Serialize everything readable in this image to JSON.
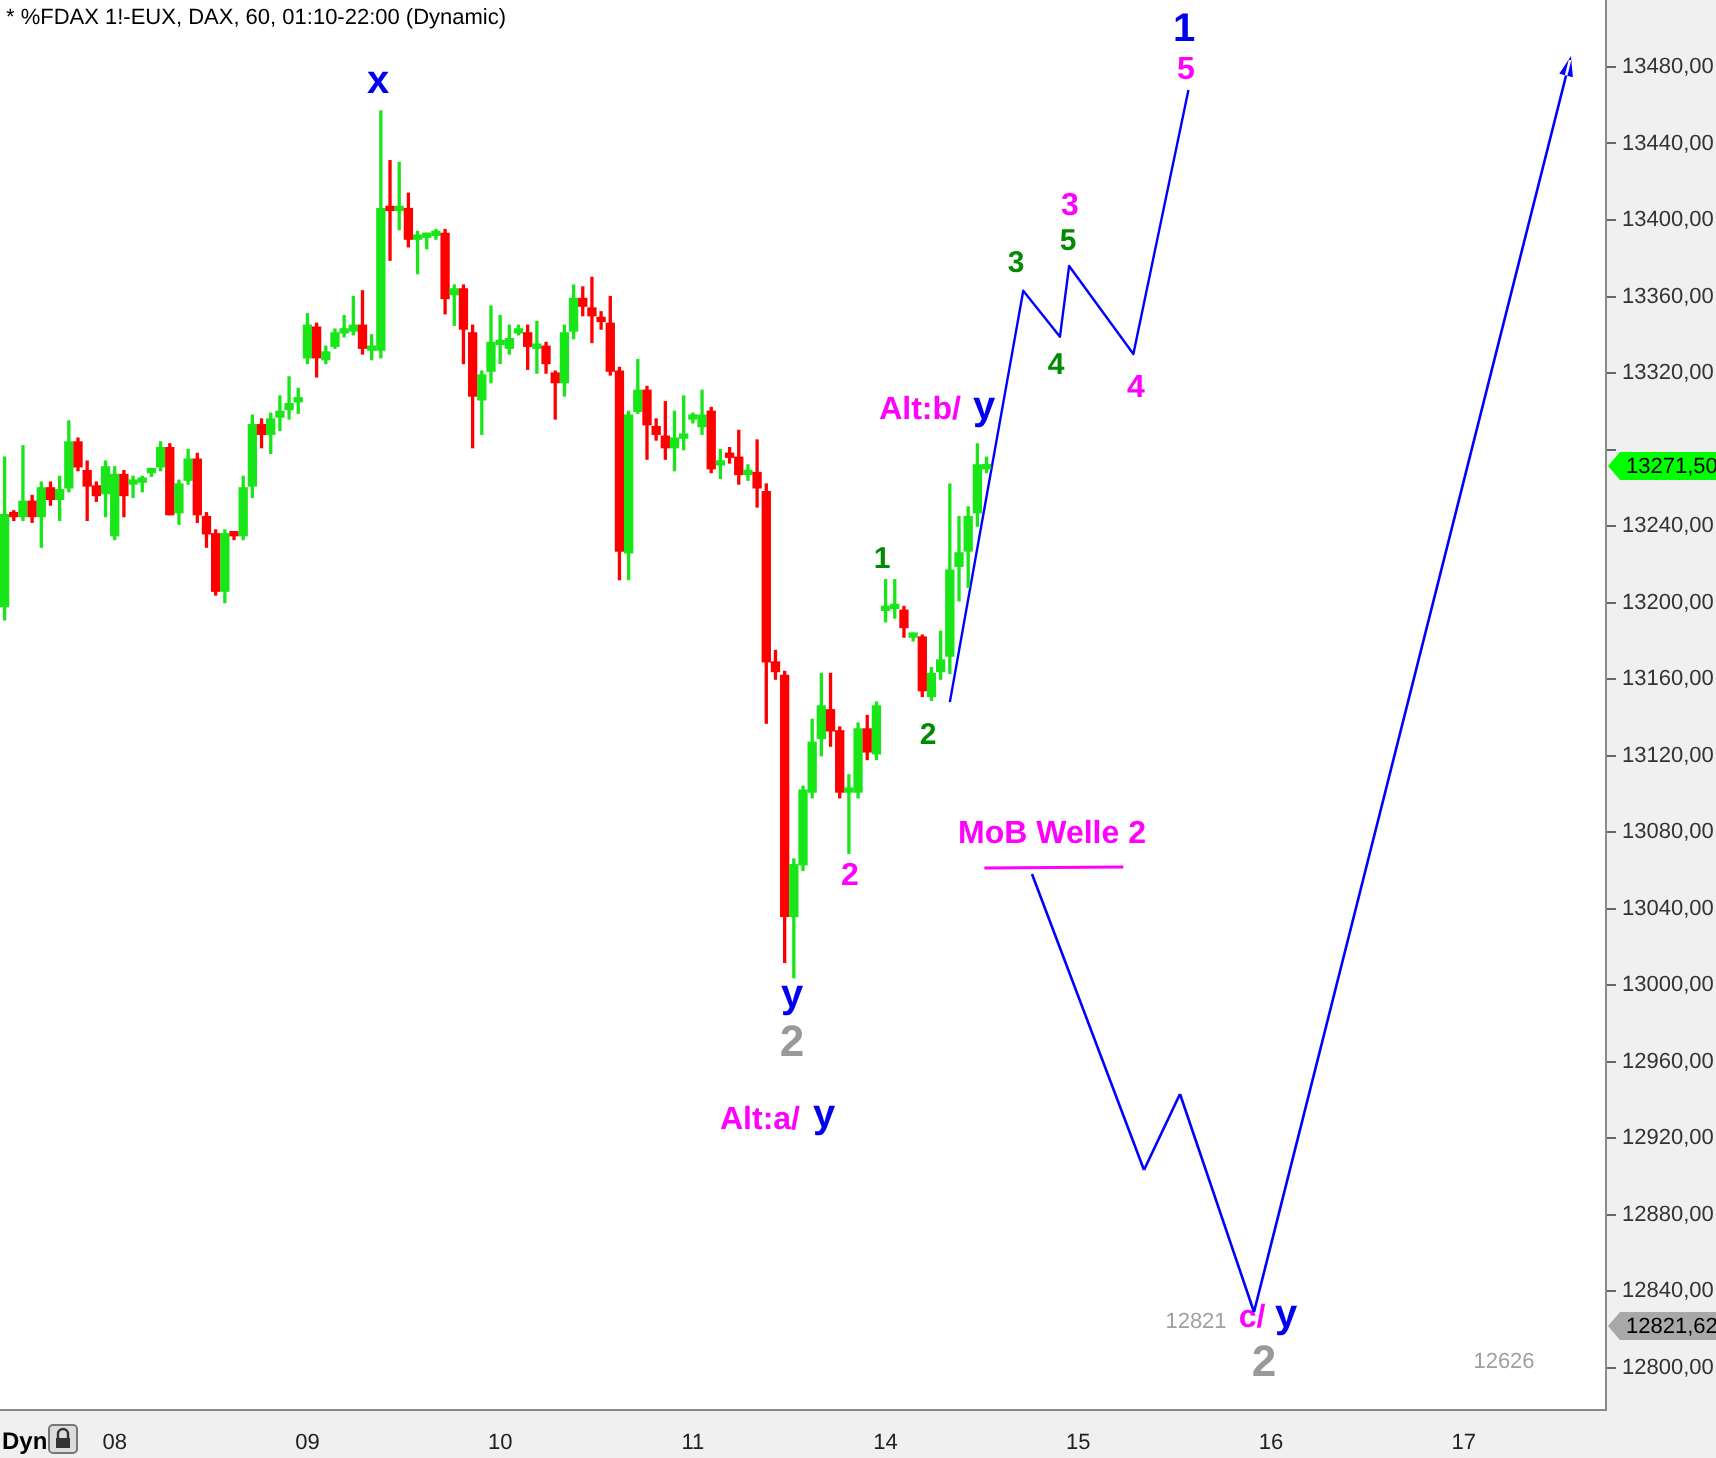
{
  "chart_data": {
    "type": "candlestick",
    "title": "* %FDAX 1!-EUX, DAX, 60, 01:10-22:00 (Dynamic)",
    "categories": [
      null,
      null,
      null,
      null,
      null,
      null,
      null,
      null,
      null,
      null,
      null,
      null,
      "08",
      null,
      null,
      null,
      null,
      null,
      null,
      null,
      null,
      null,
      null,
      null,
      null,
      null,
      null,
      null,
      null,
      null,
      null,
      null,
      null,
      "09",
      null,
      null,
      null,
      null,
      null,
      null,
      null,
      null,
      null,
      null,
      null,
      null,
      null,
      null,
      null,
      null,
      null,
      null,
      null,
      null,
      "10",
      null,
      null,
      null,
      null,
      null,
      null,
      null,
      null,
      null,
      null,
      null,
      null,
      null,
      null,
      null,
      null,
      null,
      null,
      null,
      null,
      "11",
      null,
      null,
      null,
      null,
      null,
      null,
      null,
      null,
      null,
      null,
      null,
      null,
      null,
      null,
      null,
      null,
      null,
      null,
      null,
      null,
      "14",
      null,
      null,
      null,
      null,
      null,
      null,
      null,
      null,
      null,
      null,
      null,
      null,
      null,
      null,
      null,
      null,
      null,
      null,
      null,
      null,
      "15",
      null,
      null,
      null,
      null,
      null,
      null,
      null,
      null,
      null,
      null,
      null,
      null,
      null,
      null,
      null,
      null,
      null,
      null,
      null,
      null,
      "16",
      null,
      null,
      null,
      null,
      null,
      null,
      null,
      null,
      null,
      null,
      null,
      null,
      null,
      null,
      null,
      null,
      null,
      null,
      null,
      null,
      "17",
      null,
      null,
      null,
      null,
      null,
      null,
      null,
      null,
      null,
      null,
      null,
      null,
      null,
      null,
      null
    ],
    "ohlc": [
      [
        13198,
        13276,
        13191,
        13246
      ],
      [
        13246,
        13248,
        13243,
        13245
      ],
      [
        13245,
        13282,
        13243,
        13253
      ],
      [
        13253,
        13256,
        13242,
        13245
      ],
      [
        13245,
        13263,
        13229,
        13260
      ],
      [
        13260,
        13263,
        13251,
        13254
      ],
      [
        13254,
        13266,
        13243,
        13259
      ],
      [
        13260,
        13295,
        13258,
        13284
      ],
      [
        13284,
        13286,
        13269,
        13271
      ],
      [
        13269,
        13274,
        13243,
        13261
      ],
      [
        13261,
        13263,
        13253,
        13256
      ],
      [
        13257,
        13274,
        13245,
        13271
      ],
      [
        13235,
        13271,
        13233,
        13267
      ],
      [
        13267,
        13269,
        13245,
        13256
      ],
      [
        13262,
        13266,
        13255,
        13263
      ],
      [
        13263,
        13266,
        13258,
        13264
      ],
      [
        13268,
        13270,
        13266,
        13268
      ],
      [
        13271,
        13284,
        13269,
        13281
      ],
      [
        13281,
        13283,
        13246,
        13246
      ],
      [
        13247,
        13264,
        13241,
        13262
      ],
      [
        13264,
        13280,
        13262,
        13275
      ],
      [
        13275,
        13278,
        13242,
        13246
      ],
      [
        13245,
        13247,
        13229,
        13236
      ],
      [
        13236,
        13238,
        13204,
        13206
      ],
      [
        13206,
        13238,
        13200,
        13236
      ],
      [
        13236,
        13237,
        13233,
        13235
      ],
      [
        13235,
        13266,
        13233,
        13260
      ],
      [
        13261,
        13298,
        13255,
        13293
      ],
      [
        13293,
        13296,
        13281,
        13288
      ],
      [
        13288,
        13299,
        13278,
        13296
      ],
      [
        13297,
        13308,
        13290,
        13300
      ],
      [
        13301,
        13318,
        13296,
        13304
      ],
      [
        13305,
        13312,
        13299,
        13306
      ],
      [
        13328,
        13351,
        13325,
        13345
      ],
      [
        13344,
        13346,
        13318,
        13328
      ],
      [
        13327,
        13334,
        13325,
        13331
      ],
      [
        13334,
        13343,
        13333,
        13341
      ],
      [
        13341,
        13350,
        13339,
        13342
      ],
      [
        13342,
        13360,
        13340,
        13345
      ],
      [
        13345,
        13363,
        13330,
        13333
      ],
      [
        13332,
        13340,
        13327,
        13333
      ],
      [
        13332,
        13457,
        13328,
        13406
      ],
      [
        13406,
        13431,
        13379,
        13405
      ],
      [
        13405,
        13430,
        13395,
        13406
      ],
      [
        13406,
        13414,
        13386,
        13390
      ],
      [
        13390,
        13394,
        13372,
        13391
      ],
      [
        13391,
        13393,
        13385,
        13392
      ],
      [
        13392,
        13395,
        13390,
        13393
      ],
      [
        13393,
        13395,
        13351,
        13359
      ],
      [
        13361,
        13366,
        13345,
        13364
      ],
      [
        13364,
        13366,
        13325,
        13343
      ],
      [
        13341,
        13345,
        13281,
        13308
      ],
      [
        13306,
        13321,
        13288,
        13319
      ],
      [
        13321,
        13355,
        13315,
        13336
      ],
      [
        13335,
        13350,
        13325,
        13336
      ],
      [
        13333,
        13345,
        13330,
        13338
      ],
      [
        13341,
        13345,
        13340,
        13342
      ],
      [
        13341,
        13345,
        13322,
        13334
      ],
      [
        13333,
        13347,
        13320,
        13333
      ],
      [
        13334,
        13336,
        13320,
        13325
      ],
      [
        13320,
        13321,
        13296,
        13315
      ],
      [
        13315,
        13345,
        13308,
        13341
      ],
      [
        13342,
        13366,
        13338,
        13359
      ],
      [
        13359,
        13365,
        13350,
        13355
      ],
      [
        13354,
        13370,
        13336,
        13350
      ],
      [
        13349,
        13352,
        13343,
        13347
      ],
      [
        13346,
        13360,
        13319,
        13321
      ],
      [
        13321,
        13323,
        13212,
        13227
      ],
      [
        13226,
        13300,
        13212,
        13298
      ],
      [
        13300,
        13327,
        13299,
        13311
      ],
      [
        13311,
        13313,
        13275,
        13293
      ],
      [
        13292,
        13296,
        13285,
        13288
      ],
      [
        13287,
        13305,
        13275,
        13281
      ],
      [
        13281,
        13300,
        13269,
        13286
      ],
      [
        13286,
        13308,
        13280,
        13287
      ],
      [
        13296,
        13299,
        13294,
        13296
      ],
      [
        13292,
        13311,
        13288,
        13298
      ],
      [
        13300,
        13302,
        13268,
        13270
      ],
      [
        13272,
        13280,
        13265,
        13272
      ],
      [
        13277,
        13281,
        13273,
        13276
      ],
      [
        13276,
        13290,
        13262,
        13267
      ],
      [
        13267,
        13272,
        13264,
        13267
      ],
      [
        13268,
        13285,
        13250,
        13260
      ],
      [
        13258,
        13262,
        13137,
        13169
      ],
      [
        13169,
        13175,
        13160,
        13164
      ],
      [
        13162,
        13164,
        13012,
        13036
      ],
      [
        13036,
        13066,
        13004,
        13063
      ],
      [
        13063,
        13104,
        13060,
        13102
      ],
      [
        13101,
        13139,
        13098,
        13127
      ],
      [
        13129,
        13163,
        13120,
        13146
      ],
      [
        13144,
        13163,
        13125,
        13133
      ],
      [
        13133,
        13135,
        13098,
        13101
      ],
      [
        13101,
        13110,
        13069,
        13102
      ],
      [
        13101,
        13137,
        13098,
        13134
      ],
      [
        13134,
        13141,
        13118,
        13122
      ],
      [
        13121,
        13148,
        13118,
        13146
      ],
      [
        13196,
        13212,
        13190,
        13197
      ],
      [
        13197,
        13212,
        13192,
        13197
      ],
      [
        13196,
        13198,
        13182,
        13187
      ],
      [
        13182,
        13184,
        13180,
        13182
      ],
      [
        13182,
        13183,
        13151,
        13154
      ],
      [
        13151,
        13166,
        13149,
        13163
      ],
      [
        13164,
        13185,
        13160,
        13170
      ],
      [
        13172,
        13262,
        13163,
        13217
      ],
      [
        13219,
        13245,
        13201,
        13226
      ],
      [
        13227,
        13250,
        13208,
        13245
      ],
      [
        13247,
        13283,
        13240,
        13272
      ],
      [
        13270,
        13276,
        13268,
        13271.5
      ],
      null,
      null,
      null,
      null,
      null,
      null,
      null,
      null,
      null,
      null,
      null,
      null,
      null,
      null,
      null,
      null,
      null,
      null,
      null,
      null,
      null,
      null,
      null,
      null,
      null,
      null,
      null,
      null,
      null,
      null,
      null,
      null,
      null,
      null,
      null,
      null,
      null,
      null,
      null,
      null,
      null,
      null,
      null,
      null,
      null,
      null,
      null,
      null,
      null,
      null,
      null,
      null,
      null,
      null,
      null,
      null,
      null,
      null,
      null,
      null,
      null,
      null,
      null,
      null,
      null,
      null,
      null
    ],
    "colors": [
      "#19e619",
      "#ff0000",
      "#19e619",
      "#ff0000",
      "#19e619",
      "#ff0000",
      "#19e619",
      "#19e619",
      "#ff0000",
      "#ff0000",
      "#ff0000",
      "#19e619",
      "#19e619",
      "#ff0000",
      "#19e619",
      "#19e619",
      "#19e619",
      "#19e619",
      "#ff0000",
      "#19e619",
      "#19e619",
      "#ff0000",
      "#ff0000",
      "#ff0000",
      "#19e619",
      "#ff0000",
      "#19e619",
      "#19e619",
      "#ff0000",
      "#19e619",
      "#19e619",
      "#19e619",
      "#19e619",
      "#19e619",
      "#ff0000",
      "#19e619",
      "#19e619",
      "#19e619",
      "#19e619",
      "#ff0000",
      "#19e619",
      "#19e619",
      "#ff0000",
      "#19e619",
      "#ff0000",
      "#19e619",
      "#19e619",
      "#19e619",
      "#ff0000",
      "#19e619",
      "#ff0000",
      "#ff0000",
      "#19e619",
      "#19e619",
      "#19e619",
      "#19e619",
      "#19e619",
      "#ff0000",
      "#19e619",
      "#ff0000",
      "#ff0000",
      "#19e619",
      "#19e619",
      "#ff0000",
      "#ff0000",
      "#ff0000",
      "#ff0000",
      "#ff0000",
      "#19e619",
      "#19e619",
      "#ff0000",
      "#ff0000",
      "#ff0000",
      "#19e619",
      "#19e619",
      "#19e619",
      "#19e619",
      "#ff0000",
      "#19e619",
      "#ff0000",
      "#ff0000",
      "#19e619",
      "#ff0000",
      "#ff0000",
      "#ff0000",
      "#ff0000",
      "#19e619",
      "#19e619",
      "#19e619",
      "#19e619",
      "#ff0000",
      "#ff0000",
      "#19e619",
      "#19e619",
      "#ff0000",
      "#19e619",
      "#19e619",
      "#19e619",
      "#ff0000",
      "#19e619",
      "#ff0000",
      "#19e619",
      "#19e619",
      "#19e619",
      "#19e619",
      "#19e619",
      "#19e619",
      "#19e619",
      null,
      null,
      null,
      null,
      null,
      null,
      null,
      null,
      null,
      null,
      null,
      null,
      null,
      null,
      null,
      null,
      null,
      null,
      null,
      null,
      null,
      null,
      null,
      null,
      null,
      null,
      null,
      null,
      null,
      null,
      null,
      null,
      null,
      null,
      null,
      null,
      null,
      null,
      null,
      null,
      null,
      null,
      null,
      null,
      null,
      null,
      null,
      null,
      null,
      null,
      null,
      null,
      null,
      null,
      null,
      null,
      null,
      null,
      null,
      null,
      null,
      null,
      null,
      null,
      null,
      null,
      null
    ],
    "series": [
      {
        "type": "line",
        "color": "#0000ff",
        "values": [
          null,
          null,
          null,
          null,
          null,
          null,
          null,
          null,
          null,
          null,
          null,
          null,
          null,
          null,
          null,
          null,
          null,
          null,
          null,
          null,
          null,
          null,
          null,
          null,
          null,
          null,
          null,
          null,
          null,
          null,
          null,
          null,
          null,
          null,
          null,
          null,
          null,
          null,
          null,
          null,
          null,
          null,
          null,
          null,
          null,
          null,
          null,
          null,
          null,
          null,
          null,
          null,
          null,
          null,
          null,
          null,
          null,
          null,
          null,
          null,
          null,
          null,
          null,
          null,
          null,
          null,
          null,
          null,
          null,
          null,
          null,
          null,
          null,
          null,
          null,
          null,
          null,
          null,
          null,
          null,
          null,
          null,
          null,
          null,
          null,
          null,
          null,
          null,
          null,
          null,
          null,
          null,
          null,
          null,
          null,
          null,
          null,
          null,
          null,
          null,
          null,
          null,
          null,
          13148,
          null,
          null,
          null,
          null,
          null,
          null,
          null,
          13363,
          null,
          null,
          null,
          13339,
          13376,
          null,
          null,
          null,
          null,
          null,
          null,
          13330,
          null,
          null,
          null,
          null,
          null,
          13468,
          null,
          null,
          null,
          null,
          null,
          null,
          null,
          null,
          null,
          null,
          null,
          null,
          null,
          null,
          null,
          null,
          null,
          null,
          null,
          null,
          null,
          null,
          null,
          null,
          null,
          null,
          null,
          null,
          null,
          null,
          null,
          null,
          null,
          null,
          null,
          null,
          null,
          null,
          null,
          null,
          null,
          null,
          null,
          null,
          null
        ]
      }
    ],
    "ylim": [
      12778,
      13515
    ],
    "yticks": [
      {
        "value": 12800,
        "label": "12800,00"
      },
      {
        "value": 12840,
        "label": "12840,00"
      },
      {
        "value": 12880,
        "label": "12880,00"
      },
      {
        "value": 12920,
        "label": "12920,00"
      },
      {
        "value": 12960,
        "label": "12960,00"
      },
      {
        "value": 13000,
        "label": "13000,00"
      },
      {
        "value": 13040,
        "label": "13040,00"
      },
      {
        "value": 13080,
        "label": "13080,00"
      },
      {
        "value": 13120,
        "label": "13120,00"
      },
      {
        "value": 13160,
        "label": "13160,00"
      },
      {
        "value": 13200,
        "label": "13200,00"
      },
      {
        "value": 13240,
        "label": "13240,00"
      },
      {
        "value": 13280,
        "label": null
      },
      {
        "value": 13320,
        "label": "13320,00"
      },
      {
        "value": 13360,
        "label": "13360,00"
      },
      {
        "value": 13400,
        "label": "13400,00"
      },
      {
        "value": 13440,
        "label": "13440,00"
      },
      {
        "value": 13480,
        "label": "13480,00"
      }
    ],
    "grid": false,
    "legend": false,
    "annotations": [
      "x",
      "y",
      "2",
      "Alt:a/",
      "y",
      "2",
      "1",
      "2",
      "Alt:b/",
      "y",
      "3",
      "4",
      "3",
      "5",
      "4",
      "1",
      "5",
      "MoB Welle 2",
      "c/",
      "y",
      "2",
      "12821",
      "13271,50",
      "12821,62",
      "12626",
      "Dyn"
    ]
  }
}
